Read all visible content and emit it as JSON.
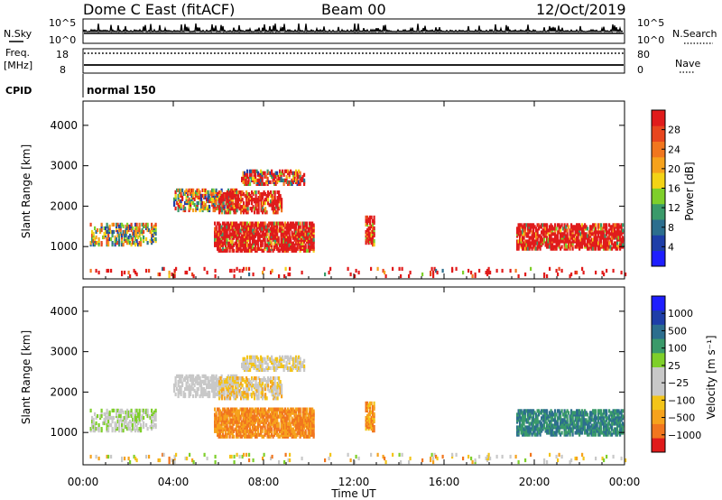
{
  "header": {
    "station": "Dome C East (fitACF)",
    "beam": "Beam 00",
    "date": "12/Oct/2019"
  },
  "top_panels": {
    "nsky_label": "N.Sky",
    "nsky_ticks": [
      "10^5",
      "10^0"
    ],
    "nsearch_label": "N.Search",
    "nsearch_ticks": [
      "10^5",
      "10^0"
    ],
    "freq_label_1": "Freq.",
    "freq_label_2": "[MHz]",
    "freq_ticks": [
      "18",
      "8"
    ],
    "nave_label": "Nave",
    "nave_ticks": [
      "80",
      "0"
    ],
    "cpid_label": "CPID",
    "cpid_value": "normal 150"
  },
  "colors": {
    "power_scale": [
      "#1e1eff",
      "#1e3ea8",
      "#2c6e8e",
      "#3a9a6a",
      "#7ecf2a",
      "#f3d316",
      "#f6a21c",
      "#f1761e",
      "#e8461e",
      "#e01b1b"
    ],
    "velocity_scale": [
      "#e01b1b",
      "#f1761e",
      "#f6a21c",
      "#f3c419",
      "#c8c8c8",
      "#c8c8c8",
      "#7ecf2a",
      "#3a9a6a",
      "#2c6e8e",
      "#1e3ea8",
      "#1e1eff"
    ]
  },
  "chart_data": [
    {
      "type": "heatmap",
      "title": "",
      "xlabel": "Time UT",
      "ylabel": "Slant Range [km]",
      "xlim": [
        0,
        24
      ],
      "ylim": [
        200,
        4600
      ],
      "x_tick_labels": [
        "00:00",
        "04:00",
        "08:00",
        "12:00",
        "16:00",
        "20:00",
        "00:00"
      ],
      "y_tick_labels": [
        "1000",
        "2000",
        "3000",
        "4000"
      ],
      "colorbar": {
        "label": "Power [dB]",
        "range": [
          0,
          32
        ],
        "tick_labels": [
          "4",
          "8",
          "12",
          "16",
          "20",
          "24",
          "28"
        ]
      },
      "regions": [
        {
          "t0": 0.3,
          "t1": 3.2,
          "r0": 1000,
          "r1": 1500,
          "density": 0.35,
          "cmin": 1,
          "cmax": 8
        },
        {
          "t0": 4.0,
          "t1": 6.8,
          "r0": 1850,
          "r1": 2350,
          "density": 0.45,
          "cmin": 1,
          "cmax": 10
        },
        {
          "t0": 6.0,
          "t1": 8.8,
          "r0": 1800,
          "r1": 2300,
          "density": 0.5,
          "cmin": 3,
          "cmax": 22
        },
        {
          "t0": 7.0,
          "t1": 9.8,
          "r0": 2500,
          "r1": 2850,
          "density": 0.5,
          "cmin": 1,
          "cmax": 16
        },
        {
          "t0": 5.8,
          "t1": 10.2,
          "r0": 850,
          "r1": 1550,
          "density": 0.65,
          "cmin": 3,
          "cmax": 30
        },
        {
          "t0": 12.5,
          "t1": 12.9,
          "r0": 1000,
          "r1": 1700,
          "density": 0.6,
          "cmin": 4,
          "cmax": 20
        },
        {
          "t0": 19.2,
          "t1": 23.9,
          "r0": 900,
          "r1": 1500,
          "density": 0.6,
          "cmin": 3,
          "cmax": 30
        },
        {
          "t0": 0.0,
          "t1": 24.0,
          "r0": 220,
          "r1": 420,
          "density": 0.06,
          "cmin": 2,
          "cmax": 30
        }
      ]
    },
    {
      "type": "heatmap",
      "title": "",
      "xlabel": "Time UT",
      "ylabel": "Slant Range [km]",
      "xlim": [
        0,
        24
      ],
      "ylim": [
        200,
        4600
      ],
      "x_tick_labels": [
        "00:00",
        "04:00",
        "08:00",
        "12:00",
        "16:00",
        "20:00",
        "00:00"
      ],
      "y_tick_labels": [
        "1000",
        "2000",
        "3000",
        "4000"
      ],
      "colorbar": {
        "label": "Velocity [m s⁻¹]",
        "range": [
          -1250,
          1250
        ],
        "tick_labels": [
          "1000",
          "500",
          "100",
          "25",
          "−25",
          "−100",
          "−500",
          "−1000"
        ]
      },
      "regions": [
        {
          "t0": 0.3,
          "t1": 3.2,
          "r0": 1000,
          "r1": 1500,
          "density": 0.35,
          "cmin": 4,
          "cmax": 6
        },
        {
          "t0": 4.0,
          "t1": 6.8,
          "r0": 1850,
          "r1": 2350,
          "density": 0.45,
          "cmin": 4,
          "cmax": 5
        },
        {
          "t0": 6.0,
          "t1": 8.8,
          "r0": 1800,
          "r1": 2300,
          "density": 0.5,
          "cmin": 2,
          "cmax": 5
        },
        {
          "t0": 7.0,
          "t1": 9.8,
          "r0": 2500,
          "r1": 2850,
          "density": 0.5,
          "cmin": 3,
          "cmax": 5
        },
        {
          "t0": 5.8,
          "t1": 10.2,
          "r0": 850,
          "r1": 1550,
          "density": 0.65,
          "cmin": 1,
          "cmax": 2
        },
        {
          "t0": 12.5,
          "t1": 12.9,
          "r0": 1000,
          "r1": 1700,
          "density": 0.6,
          "cmin": 1,
          "cmax": 3
        },
        {
          "t0": 19.2,
          "t1": 23.9,
          "r0": 900,
          "r1": 1500,
          "density": 0.6,
          "cmin": 7,
          "cmax": 8
        },
        {
          "t0": 0.0,
          "t1": 24.0,
          "r0": 220,
          "r1": 420,
          "density": 0.06,
          "cmin": 1,
          "cmax": 6
        }
      ]
    }
  ]
}
